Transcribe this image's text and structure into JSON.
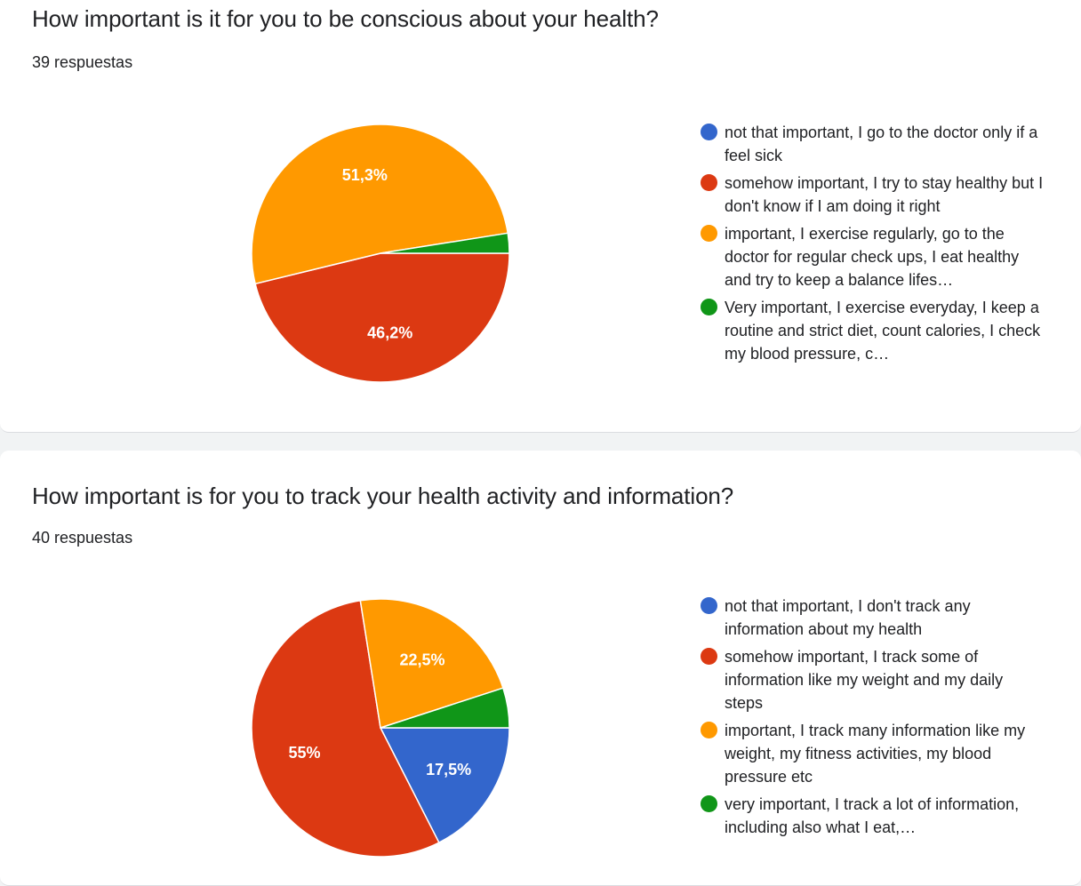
{
  "colors": {
    "blue": "#3366cc",
    "red": "#dc3912",
    "orange": "#ff9900",
    "green": "#109618"
  },
  "questions": [
    {
      "title": "How important is it for you to be conscious about your health?",
      "responses": "39 respuestas",
      "legend": [
        "not that important, I go to the doctor only if a feel sick",
        "somehow important, I try to stay healthy but I don't know if I am doing it right",
        "important, I exercise regularly, go to the doctor for regular check ups, I eat healthy and try to keep a balance lifes…",
        "Very important, I exercise everyday, I keep a routine and strict diet, count calories, I check my blood pressure, c…"
      ]
    },
    {
      "title": "How important is for you to track your health activity and information?",
      "responses": "40 respuestas",
      "legend": [
        "not that important, I don't track any information about my health",
        "somehow important, I track some of information like my weight and my daily steps",
        "important, I track many information like my weight, my fitness activities, my blood pressure etc",
        "very important, I track a lot of information, including also what I eat,…"
      ]
    }
  ],
  "chart_data": [
    {
      "type": "pie",
      "title": "How important is it for you to be conscious about your health?",
      "categories": [
        "not that important, I go to the doctor only if a feel sick",
        "somehow important, I try to stay healthy but I don't know if I am doing it right",
        "important, I exercise regularly, go to the doctor for regular check ups, I eat healthy and try to keep a balance lifes…",
        "Very important, I exercise everyday, I keep a routine and strict diet, count calories, I check my blood pressure, c…"
      ],
      "values": [
        0,
        46.2,
        51.3,
        2.5
      ],
      "labels": [
        "",
        "46,2%",
        "51,3%",
        ""
      ],
      "colors": [
        "#3366cc",
        "#dc3912",
        "#ff9900",
        "#109618"
      ],
      "legend_position": "right"
    },
    {
      "type": "pie",
      "title": "How important is for you to track your health activity and information?",
      "categories": [
        "not that important, I don't track any information about my health",
        "somehow important, I track some of information like my weight and my daily steps",
        "important, I track many information like my weight, my fitness activities, my blood pressure etc",
        "very important, I track a lot of information, including also what I eat,…"
      ],
      "values": [
        17.5,
        55,
        22.5,
        5
      ],
      "labels": [
        "17,5%",
        "55%",
        "22,5%",
        ""
      ],
      "colors": [
        "#3366cc",
        "#dc3912",
        "#ff9900",
        "#109618"
      ],
      "legend_position": "right"
    }
  ]
}
